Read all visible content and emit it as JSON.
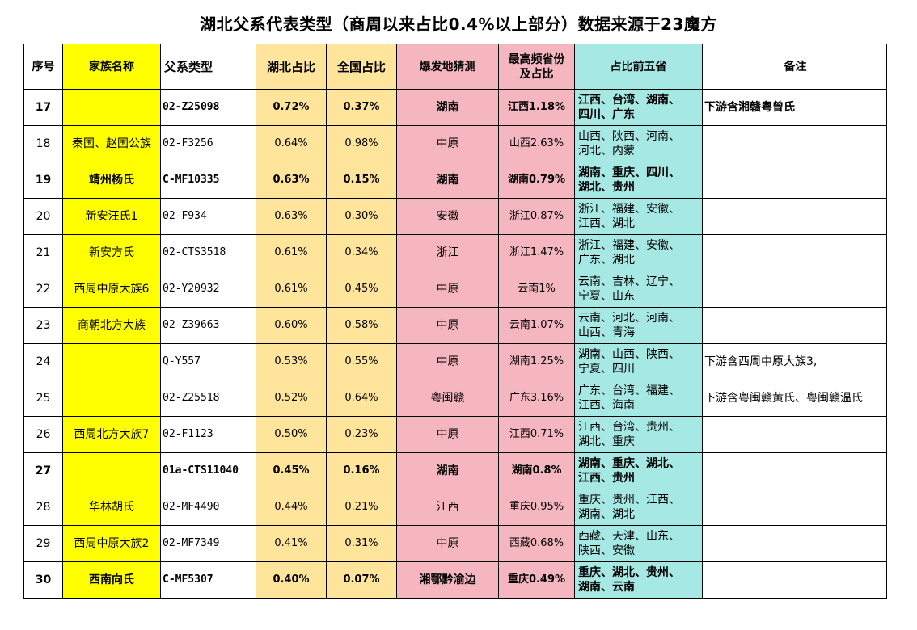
{
  "title": "湖北父系代表类型（商周以来占比0.4%以上部分）数据来源于23魔方",
  "headers": {
    "idx": "序号",
    "name": "家族名称",
    "type": "父系类型",
    "hubei": "湖北占比",
    "national": "全国占比",
    "origin": "爆发地猜测",
    "top_province": "最高频省份及占比",
    "top_province_line1": "最高频省份",
    "top_province_line2": "及占比",
    "top_five": "占比前五省",
    "note": "备注"
  },
  "colors": {
    "name_bg": "#FFFF00",
    "pct_bg": "#FFE49B",
    "origin_bg": "#F5B6C0",
    "top5_bg": "#A6E9E4"
  },
  "rows": [
    {
      "idx": "17",
      "name": "",
      "type": "02-Z25098",
      "hubei": "0.72%",
      "national": "0.37%",
      "origin": "湖南",
      "top": "江西1.18%",
      "five1": "江西、台湾、湖南、",
      "five2": "四川、广东",
      "note": "下游含湘赣粤曾氏",
      "bold": true
    },
    {
      "idx": "18",
      "name": "秦国、赵国公族",
      "type": "02-F3256",
      "hubei": "0.64%",
      "national": "0.98%",
      "origin": "中原",
      "top": "山西2.63%",
      "five1": "山西、陕西、河南、",
      "five2": "河北、内蒙",
      "note": "",
      "bold": false
    },
    {
      "idx": "19",
      "name": "靖州杨氏",
      "type": "C-MF10335",
      "hubei": "0.63%",
      "national": "0.15%",
      "origin": "湖南",
      "top": "湖南0.79%",
      "five1": "湖南、重庆、四川、",
      "five2": "湖北、贵州",
      "note": "",
      "bold": true
    },
    {
      "idx": "20",
      "name": "新安汪氏1",
      "type": "02-F934",
      "hubei": "0.63%",
      "national": "0.30%",
      "origin": "安徽",
      "top": "浙江0.87%",
      "five1": "浙江、福建、安徽、",
      "five2": "江西、湖北",
      "note": "",
      "bold": false
    },
    {
      "idx": "21",
      "name": "新安方氏",
      "type": "02-CTS3518",
      "hubei": "0.61%",
      "national": "0.34%",
      "origin": "浙江",
      "top": "浙江1.47%",
      "five1": "浙江、福建、安徽、",
      "five2": "广东、湖北",
      "note": "",
      "bold": false
    },
    {
      "idx": "22",
      "name": "西周中原大族6",
      "type": "02-Y20932",
      "hubei": "0.61%",
      "national": "0.45%",
      "origin": "中原",
      "top": "云南1%",
      "five1": "云南、吉林、辽宁、",
      "five2": "宁夏、山东",
      "note": "",
      "bold": false
    },
    {
      "idx": "23",
      "name": "商朝北方大族",
      "type": "02-Z39663",
      "hubei": "0.60%",
      "national": "0.58%",
      "origin": "中原",
      "top": "云南1.07%",
      "five1": "云南、河北、河南、",
      "five2": "山西、青海",
      "note": "",
      "bold": false
    },
    {
      "idx": "24",
      "name": "",
      "type": "Q-Y557",
      "hubei": "0.53%",
      "national": "0.55%",
      "origin": "中原",
      "top": "湖南1.25%",
      "five1": "湖南、山西、陕西、",
      "five2": "宁夏、四川",
      "note": "下游含西周中原大族3,",
      "bold": false
    },
    {
      "idx": "25",
      "name": "",
      "type": "02-Z25518",
      "hubei": "0.52%",
      "national": "0.64%",
      "origin": "粤闽赣",
      "top": "广东3.16%",
      "five1": "广东、台湾、福建、",
      "five2": "江西、海南",
      "note": "下游含粤闽赣黄氏、粤闽赣温氏",
      "bold": false
    },
    {
      "idx": "26",
      "name": "西周北方大族7",
      "type": "02-F1123",
      "hubei": "0.50%",
      "national": "0.23%",
      "origin": "中原",
      "top": "江西0.71%",
      "five1": "江西、台湾、贵州、",
      "five2": "湖北、重庆",
      "note": "",
      "bold": false
    },
    {
      "idx": "27",
      "name": "",
      "type": "01a-CTS11040",
      "hubei": "0.45%",
      "national": "0.16%",
      "origin": "湖南",
      "top": "湖南0.8%",
      "five1": "湖南、重庆、湖北、",
      "five2": "江西、贵州",
      "note": "",
      "bold": true
    },
    {
      "idx": "28",
      "name": "华林胡氏",
      "type": "02-MF4490",
      "hubei": "0.44%",
      "national": "0.21%",
      "origin": "江西",
      "top": "重庆0.95%",
      "five1": "重庆、贵州、江西、",
      "five2": "湖南、湖北",
      "note": "",
      "bold": false
    },
    {
      "idx": "29",
      "name": "西周中原大族2",
      "type": "02-MF7349",
      "hubei": "0.41%",
      "national": "0.31%",
      "origin": "中原",
      "top": "西藏0.68%",
      "five1": "西藏、天津、山东、",
      "five2": "陕西、安徽",
      "note": "",
      "bold": false
    },
    {
      "idx": "30",
      "name": "西南向氏",
      "type": "C-MF5307",
      "hubei": "0.40%",
      "national": "0.07%",
      "origin": "湘鄂黔渝边",
      "top": "重庆0.49%",
      "five1": "重庆、湖北、贵州、",
      "five2": "湖南、云南",
      "note": "",
      "bold": true
    }
  ]
}
